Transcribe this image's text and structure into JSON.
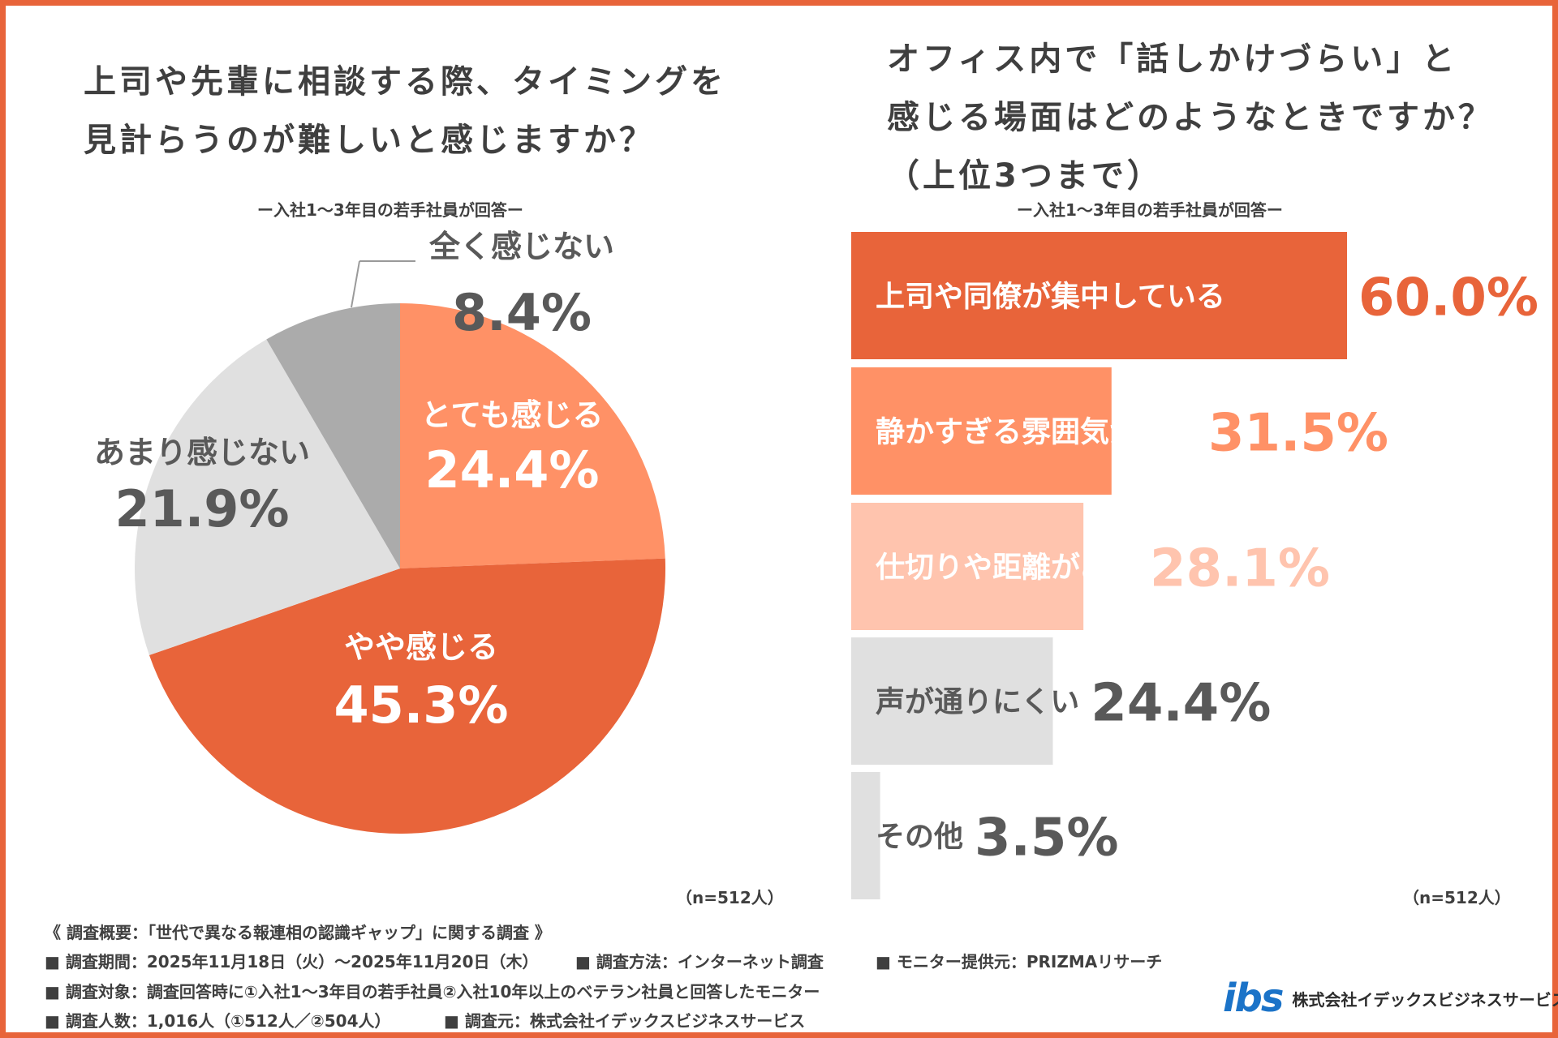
{
  "left": {
    "title_line1": "上司や先輩に相談する際、タイミングを",
    "title_line2": "見計らうのが難しいと感じますか？",
    "subtitle": "ー入社1～3年目の若手社員が回答ー",
    "n_label": "（n=512人）"
  },
  "right": {
    "title_line1": "オフィス内で「話しかけづらい」と",
    "title_line2": "感じる場面はどのようなときですか？",
    "title_line3": "（上位3つまで）",
    "subtitle": "ー入社1～3年目の若手社員が回答ー",
    "n_label": "（n=512人）"
  },
  "chart_data": [
    {
      "type": "pie",
      "slices": [
        {
          "label": "とても感じる",
          "value": 24.4,
          "display": "24.4%",
          "color": "#FF9166",
          "label_color": "#ffffff"
        },
        {
          "label": "やや感じる",
          "value": 45.3,
          "display": "45.3%",
          "color": "#E8643A",
          "label_color": "#ffffff"
        },
        {
          "label": "あまり感じない",
          "value": 21.9,
          "display": "21.9%",
          "color": "#E0E0E0",
          "label_color": "#595959"
        },
        {
          "label": "全く感じない",
          "value": 8.4,
          "display": "8.4%",
          "color": "#ABABAB",
          "label_color": "#595959"
        }
      ]
    },
    {
      "type": "bar",
      "orientation": "horizontal",
      "categories": [
        "上司や同僚が集中している",
        "静かすぎる雰囲気がある",
        "仕切りや距離がある",
        "声が通りにくい",
        "その他"
      ],
      "values": [
        60.0,
        31.5,
        28.1,
        24.4,
        3.5
      ],
      "display": [
        "60.0%",
        "31.5%",
        "28.1%",
        "24.4%",
        "3.5%"
      ],
      "colors": [
        "#E8643A",
        "#FF9166",
        "#FFC4AE",
        "#E0E0E0",
        "#E0E0E0"
      ],
      "label_colors": [
        "#ffffff",
        "#ffffff",
        "#ffffff",
        "#595959",
        "#595959"
      ],
      "value_colors": [
        "#E8643A",
        "#FF9166",
        "#FFC4AE",
        "#595959",
        "#595959"
      ]
    }
  ],
  "footer": {
    "heading": "《 調査概要：「世代で異なる報連相の認識ギャップ」に関する調査 》",
    "line1_a": "■ 調査期間：2025年11月18日（火）～2025年11月20日（木）",
    "line1_b": "■ 調査方法：インターネット調査",
    "line1_c": "■ モニター提供元：PRIZMAリサーチ",
    "line2": "■ 調査対象：調査回答時に①入社1～3年目の若手社員②入社10年以上のベテラン社員と回答したモニター",
    "line3_a": "■ 調査人数：1,016人（①512人／②504人）",
    "line3_b": "■ 調査元：株式会社イデックスビジネスサービス"
  },
  "logo": {
    "mark": "ibs",
    "company": "株式会社イデックスビジネスサービス",
    "mark_color": "#1b73c8"
  }
}
